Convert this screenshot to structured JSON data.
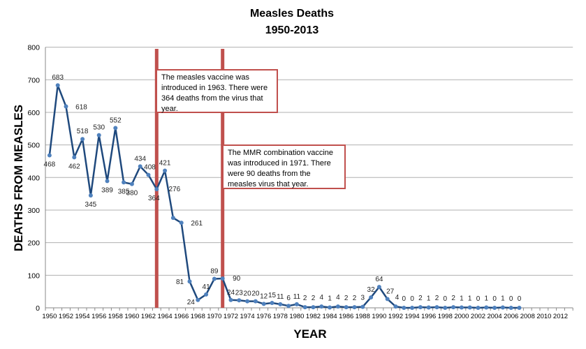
{
  "chart_data": {
    "type": "line",
    "title": "Measles Deaths",
    "subtitle": "1950-2013",
    "xlabel": "YEAR",
    "ylabel": "DEATHS FROM MEASLES",
    "ylim": [
      0,
      800
    ],
    "yticks": [
      0,
      100,
      200,
      300,
      400,
      500,
      600,
      700,
      800
    ],
    "xlim": [
      1950,
      2013
    ],
    "xtick_labels": [
      "1950",
      "1952",
      "1954",
      "1956",
      "1958",
      "1960",
      "1962",
      "1964",
      "1966",
      "1968",
      "1970",
      "1972",
      "1974",
      "1976",
      "1978",
      "1980",
      "1982",
      "1984",
      "1986",
      "1988",
      "1990",
      "1992",
      "1994",
      "1996",
      "1998",
      "2000",
      "2002",
      "2004",
      "2006",
      "2008",
      "2010",
      "2012"
    ],
    "grid": "horizontal",
    "series": [
      {
        "color": "#1f497d",
        "marker_color": "#4f81bd",
        "x": [
          1950,
          1951,
          1952,
          1953,
          1954,
          1955,
          1956,
          1957,
          1958,
          1959,
          1960,
          1961,
          1962,
          1963,
          1964,
          1965,
          1966,
          1967,
          1968,
          1969,
          1970,
          1971,
          1972,
          1973,
          1974,
          1975,
          1976,
          1977,
          1978,
          1979,
          1980,
          1981,
          1982,
          1983,
          1984,
          1985,
          1986,
          1987,
          1988,
          1989,
          1990,
          1991,
          1992,
          1993,
          1994,
          1995,
          1996,
          1997,
          1998,
          1999,
          2000,
          2001,
          2002,
          2003,
          2004,
          2005,
          2006,
          2007
        ],
        "values": [
          468,
          683,
          618,
          462,
          518,
          345,
          530,
          389,
          552,
          385,
          380,
          434,
          408,
          364,
          421,
          276,
          261,
          81,
          24,
          41,
          89,
          90,
          24,
          23,
          20,
          20,
          12,
          15,
          11,
          6,
          11,
          2,
          2,
          4,
          1,
          4,
          2,
          2,
          3,
          32,
          64,
          27,
          4,
          0,
          0,
          2,
          1,
          2,
          0,
          2,
          1,
          1,
          0,
          1,
          0,
          1,
          0,
          0
        ]
      }
    ],
    "annotations": [
      {
        "year": 1963,
        "color": "#c0504d",
        "text": "The measles vaccine was introduced in 1963. There were 364 deaths from the virus that year."
      },
      {
        "year": 1971,
        "color": "#c0504d",
        "text": "The MMR combination vaccine was introduced in 1971. There were 90 deaths from the measles virus that year."
      }
    ]
  }
}
